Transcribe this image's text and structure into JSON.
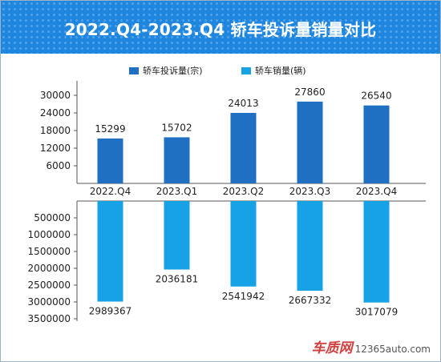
{
  "title": "2022.Q4-2023.Q4 轿车投诉量销量对比",
  "watermark": {
    "brand": "车质网",
    "domain": "12365auto.com"
  },
  "colors": {
    "complaints": "#1f6fc3",
    "sales": "#17a2e6",
    "title_bg": "#1f86e0"
  },
  "chart_data": [
    {
      "type": "bar",
      "categories": [
        "2022.Q4",
        "2023.Q1",
        "2023.Q2",
        "2023.Q3",
        "2023.Q4"
      ],
      "series": [
        {
          "name": "轿车投诉量(宗)",
          "values": [
            15299,
            15702,
            24013,
            27860,
            26540
          ]
        }
      ],
      "ylim": [
        0,
        34000
      ],
      "yticks": [
        6000,
        12000,
        18000,
        24000,
        30000
      ],
      "legend": "top"
    },
    {
      "type": "bar",
      "categories": [
        "2022.Q4",
        "2023.Q1",
        "2023.Q2",
        "2023.Q3",
        "2023.Q4"
      ],
      "series": [
        {
          "name": "轿车销量(辆)",
          "values": [
            2989367,
            2036181,
            2541942,
            2667332,
            3017079
          ]
        }
      ],
      "ylim": [
        0,
        3500000
      ],
      "yticks": [
        500000,
        1000000,
        1500000,
        2000000,
        2500000,
        3000000,
        3500000
      ],
      "inverted": true,
      "legend": "top"
    }
  ]
}
